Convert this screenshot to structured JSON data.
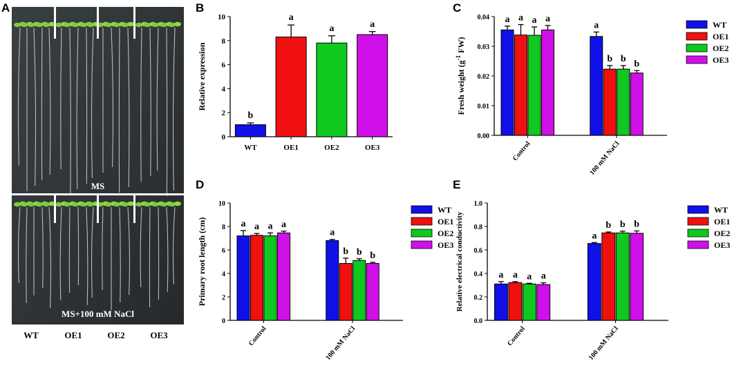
{
  "panels": {
    "A": "A",
    "B": "B",
    "C": "C",
    "D": "D",
    "E": "E"
  },
  "photo": {
    "top_label": "MS",
    "bottom_label": "MS+100 mM NaCl",
    "genotypes": [
      "WT",
      "OE1",
      "OE2",
      "OE3"
    ]
  },
  "colors": {
    "WT": "#1010e8",
    "OE1": "#f01010",
    "OE2": "#10c820",
    "OE3": "#d010e8"
  },
  "chart_data": [
    {
      "id": "B",
      "type": "bar",
      "title": "",
      "categories": [
        "WT",
        "OE1",
        "OE2",
        "OE3"
      ],
      "values": [
        1.0,
        8.3,
        7.8,
        8.5
      ],
      "errors": [
        0.15,
        1.0,
        0.6,
        0.25
      ],
      "letters": [
        "b",
        "a",
        "a",
        "a"
      ],
      "ylabel": "Relative expression",
      "xlabel": "",
      "ylim": [
        0,
        10
      ],
      "yticks": [
        "0",
        "2",
        "4",
        "6",
        "8",
        "10"
      ]
    },
    {
      "id": "C",
      "type": "bar",
      "title": "",
      "groups": [
        "Control",
        "100 mM NaCl"
      ],
      "series": [
        {
          "name": "WT",
          "values": [
            0.0355,
            0.0333
          ],
          "errors": [
            0.0013,
            0.0015
          ],
          "letters": [
            "a",
            "a"
          ]
        },
        {
          "name": "OE1",
          "values": [
            0.0338,
            0.0223
          ],
          "errors": [
            0.0035,
            0.0012
          ],
          "letters": [
            "a",
            "b"
          ]
        },
        {
          "name": "OE2",
          "values": [
            0.0337,
            0.0223
          ],
          "errors": [
            0.0028,
            0.0012
          ],
          "letters": [
            "a",
            "b"
          ]
        },
        {
          "name": "OE3",
          "values": [
            0.0355,
            0.021
          ],
          "errors": [
            0.0015,
            0.0008
          ],
          "letters": [
            "a",
            "b"
          ]
        }
      ],
      "ylabel": "Fresh weight (g-1 FW)",
      "ylim": [
        0,
        0.04
      ],
      "yticks": [
        "0.00",
        "0.01",
        "0.02",
        "0.03",
        "0.04"
      ],
      "legend": [
        "WT",
        "OE1",
        "OE2",
        "OE3"
      ]
    },
    {
      "id": "D",
      "type": "bar",
      "title": "",
      "groups": [
        "Control",
        "100 mM NaCl"
      ],
      "series": [
        {
          "name": "WT",
          "values": [
            7.2,
            6.8
          ],
          "errors": [
            0.45,
            0.1
          ],
          "letters": [
            "a",
            "a"
          ]
        },
        {
          "name": "OE1",
          "values": [
            7.25,
            4.85
          ],
          "errors": [
            0.15,
            0.45
          ],
          "letters": [
            "a",
            "b"
          ]
        },
        {
          "name": "OE2",
          "values": [
            7.2,
            5.1
          ],
          "errors": [
            0.25,
            0.15
          ],
          "letters": [
            "a",
            "b"
          ]
        },
        {
          "name": "OE3",
          "values": [
            7.45,
            4.85
          ],
          "errors": [
            0.15,
            0.1
          ],
          "letters": [
            "a",
            "b"
          ]
        }
      ],
      "ylabel": "Primary root length (cm)",
      "ylim": [
        0,
        10
      ],
      "yticks": [
        "0",
        "2",
        "4",
        "6",
        "8",
        "10"
      ],
      "legend": [
        "WT",
        "OE1",
        "OE2",
        "OE3"
      ]
    },
    {
      "id": "E",
      "type": "bar",
      "title": "",
      "groups": [
        "Control",
        "100 mM NaCl"
      ],
      "series": [
        {
          "name": "WT",
          "values": [
            0.31,
            0.655
          ],
          "errors": [
            0.02,
            0.008
          ],
          "letters": [
            "a",
            "a"
          ]
        },
        {
          "name": "OE1",
          "values": [
            0.322,
            0.745
          ],
          "errors": [
            0.008,
            0.008
          ],
          "letters": [
            "a",
            "b"
          ]
        },
        {
          "name": "OE2",
          "values": [
            0.31,
            0.745
          ],
          "errors": [
            0.006,
            0.015
          ],
          "letters": [
            "a",
            "b"
          ]
        },
        {
          "name": "OE3",
          "values": [
            0.305,
            0.742
          ],
          "errors": [
            0.015,
            0.02
          ],
          "letters": [
            "a",
            "b"
          ]
        }
      ],
      "ylabel": "Relative electrical conductivity",
      "ylim": [
        0,
        1.0
      ],
      "yticks": [
        "0.0",
        "0.2",
        "0.4",
        "0.6",
        "0.8",
        "1.0"
      ],
      "legend": [
        "WT",
        "OE1",
        "OE2",
        "OE3"
      ]
    }
  ]
}
